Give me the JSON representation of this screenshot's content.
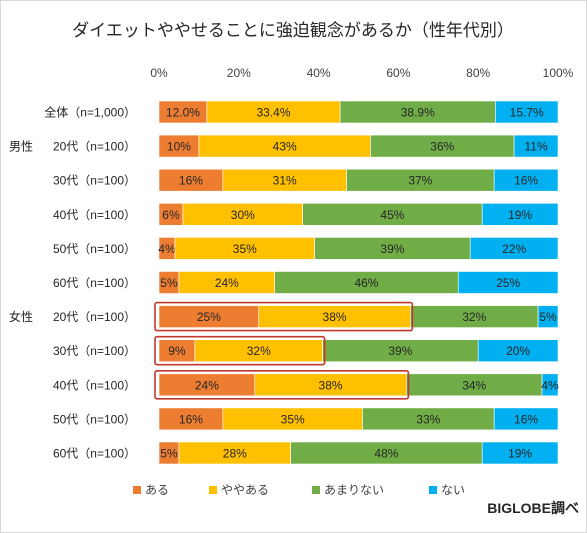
{
  "chart_data": {
    "type": "bar",
    "orientation": "horizontal",
    "stacked": "percent",
    "title": "ダイエットややせることに強迫観念があるか（性年代別）",
    "x_ticks": [
      "0%",
      "20%",
      "40%",
      "60%",
      "80%",
      "100%"
    ],
    "xlim": [
      0,
      100
    ],
    "legend_position": "bottom",
    "credit": "BIGLOBE調べ",
    "colors": {
      "ある": "#ed7d31",
      "ややある": "#ffc000",
      "あまりない": "#70ad47",
      "ない": "#00b0f0",
      "highlight": "#c0392b"
    },
    "series_names": [
      "ある",
      "ややある",
      "あまりない",
      "ない"
    ],
    "rows": [
      {
        "group": "",
        "label": "全体（n=1,000）",
        "values": [
          12.0,
          33.4,
          38.9,
          15.7
        ],
        "labels": [
          "12.0%",
          "33.4%",
          "38.9%",
          "15.7%"
        ],
        "highlight_segments": 0
      },
      {
        "group": "男性",
        "label": "20代（n=100）",
        "values": [
          10,
          43,
          36,
          11
        ],
        "labels": [
          "10%",
          "43%",
          "36%",
          "11%"
        ],
        "highlight_segments": 0
      },
      {
        "group": "",
        "label": "30代（n=100）",
        "values": [
          16,
          31,
          37,
          16
        ],
        "labels": [
          "16%",
          "31%",
          "37%",
          "16%"
        ],
        "highlight_segments": 0
      },
      {
        "group": "",
        "label": "40代（n=100）",
        "values": [
          6,
          30,
          45,
          19
        ],
        "labels": [
          "6%",
          "30%",
          "45%",
          "19%"
        ],
        "highlight_segments": 0
      },
      {
        "group": "",
        "label": "50代（n=100）",
        "values": [
          4,
          35,
          39,
          22
        ],
        "labels": [
          "4%",
          "35%",
          "39%",
          "22%"
        ],
        "highlight_segments": 0
      },
      {
        "group": "",
        "label": "60代（n=100）",
        "values": [
          5,
          24,
          46,
          25
        ],
        "labels": [
          "5%",
          "24%",
          "46%",
          "25%"
        ],
        "highlight_segments": 0
      },
      {
        "group": "女性",
        "label": "20代（n=100）",
        "values": [
          25,
          38,
          32,
          5
        ],
        "labels": [
          "25%",
          "38%",
          "32%",
          "5%"
        ],
        "highlight_segments": 2
      },
      {
        "group": "",
        "label": "30代（n=100）",
        "values": [
          9,
          32,
          39,
          20
        ],
        "labels": [
          "9%",
          "32%",
          "39%",
          "20%"
        ],
        "highlight_segments": 2
      },
      {
        "group": "",
        "label": "40代（n=100）",
        "values": [
          24,
          38,
          34,
          4
        ],
        "labels": [
          "24%",
          "38%",
          "34%",
          "4%"
        ],
        "highlight_segments": 2
      },
      {
        "group": "",
        "label": "50代（n=100）",
        "values": [
          16,
          35,
          33,
          16
        ],
        "labels": [
          "16%",
          "35%",
          "33%",
          "16%"
        ],
        "highlight_segments": 0
      },
      {
        "group": "",
        "label": "60代（n=100）",
        "values": [
          5,
          28,
          48,
          19
        ],
        "labels": [
          "5%",
          "28%",
          "48%",
          "19%"
        ],
        "highlight_segments": 0
      }
    ]
  }
}
